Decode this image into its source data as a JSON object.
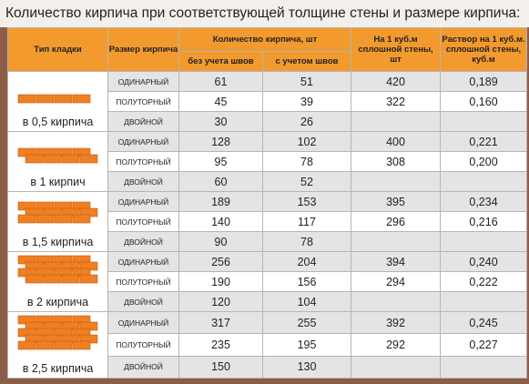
{
  "title": "Количество кирпича при соответствующей толщине стены и размере кирпича:",
  "table": {
    "header": {
      "type": "Тип кладки",
      "size": "Размер кирпича",
      "count": "Количество кирпича, шт",
      "without": "без учета швов",
      "with": "с учетом швов",
      "per_m3": "На 1 куб.м сплошной стены, шт",
      "mortar": "Раствор на 1 куб.м. сплошной стены, куб.м"
    },
    "groups": [
      {
        "type": "в 0,5 кирпича",
        "rows": [
          [
            "ОДИНАРНЫЙ",
            "61",
            "51",
            "420",
            "0,189"
          ],
          [
            "ПОЛУТОРНЫЙ",
            "45",
            "39",
            "322",
            "0,160"
          ],
          [
            "ДВОЙНОЙ",
            "30",
            "26"
          ]
        ]
      },
      {
        "type": "в 1 кирпич",
        "rows": [
          [
            "ОДИНАРНЫЙ",
            "128",
            "102",
            "400",
            "0,221"
          ],
          [
            "ПОЛУТОРНЫЙ",
            "95",
            "78",
            "308",
            "0,200"
          ],
          [
            "ДВОЙНОЙ",
            "60",
            "52"
          ]
        ]
      },
      {
        "type": "в 1,5 кирпича",
        "rows": [
          [
            "ОДИНАРНЫЙ",
            "189",
            "153",
            "395",
            "0,234"
          ],
          [
            "ПОЛУТОРНЫЙ",
            "140",
            "117",
            "296",
            "0,216"
          ],
          [
            "ДВОЙНОЙ",
            "90",
            "78"
          ]
        ]
      },
      {
        "type": "в 2 кирпича",
        "rows": [
          [
            "ОДИНАРНЫЙ",
            "256",
            "204",
            "394",
            "0,240"
          ],
          [
            "ПОЛУТОРНЫЙ",
            "190",
            "156",
            "294",
            "0,222"
          ],
          [
            "ДВОЙНОЙ",
            "120",
            "104"
          ]
        ]
      },
      {
        "type": "в 2,5 кирпича",
        "rows": [
          [
            "ОДИНАРНЫЙ",
            "317",
            "255",
            "392",
            "0,245"
          ],
          [
            "ПОЛУТОРНЫЙ",
            "235",
            "195",
            "292",
            "0,227"
          ],
          [
            "ДВОЙНОЙ",
            "150",
            "130"
          ]
        ]
      }
    ]
  }
}
